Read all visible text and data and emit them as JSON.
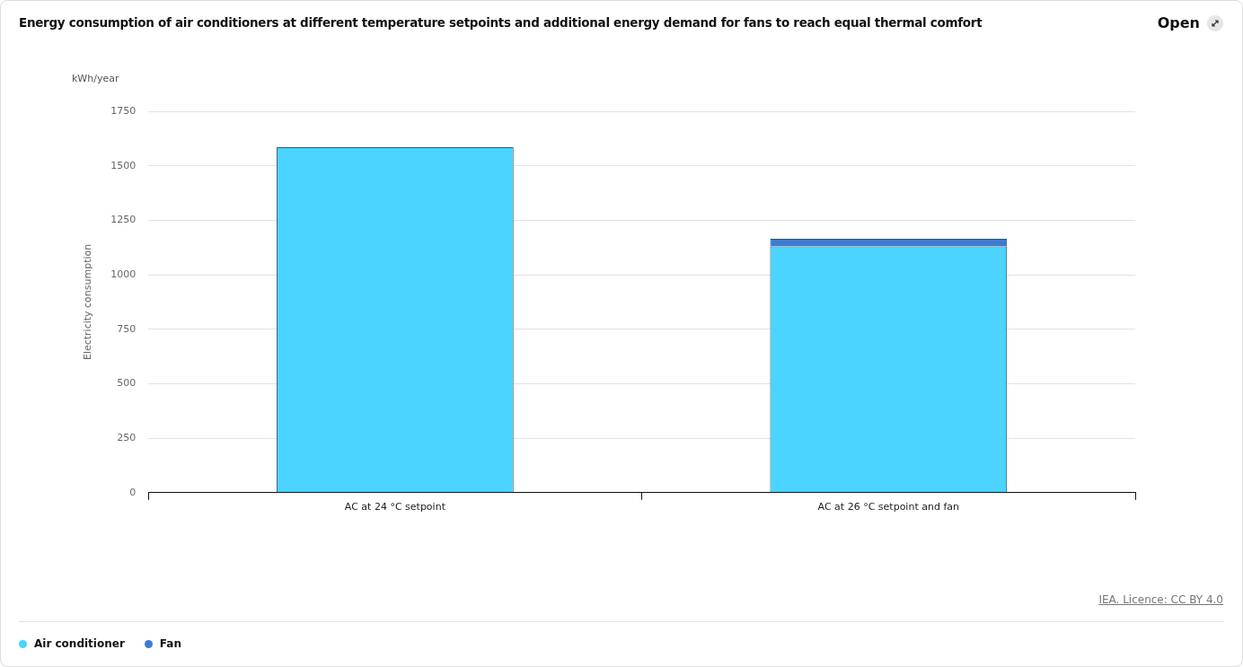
{
  "chart_data": {
    "type": "bar",
    "title": "Energy consumption of air conditioners at different temperature setpoints and additional energy demand for fans to reach equal thermal comfort",
    "ylabel": "Electricity consumption",
    "annotations": [
      "kWh/year",
      "IEA. Licence: CC BY 4.0",
      "Open"
    ],
    "categories": [
      "AC at 24 °C setpoint",
      "AC at 26 °C setpoint and fan"
    ],
    "stacked": true,
    "series": [
      {
        "name": "Air conditioner",
        "color": "#4ad4ff",
        "values": [
          1585,
          1130
        ]
      },
      {
        "name": "Fan",
        "color": "#3e7bd0",
        "values": [
          null,
          35
        ]
      }
    ],
    "ylim": [
      0,
      1750
    ],
    "yticks": [
      0,
      250,
      500,
      750,
      1000,
      1250,
      1500,
      1750
    ],
    "grid": "y",
    "legend": "bottom left"
  }
}
